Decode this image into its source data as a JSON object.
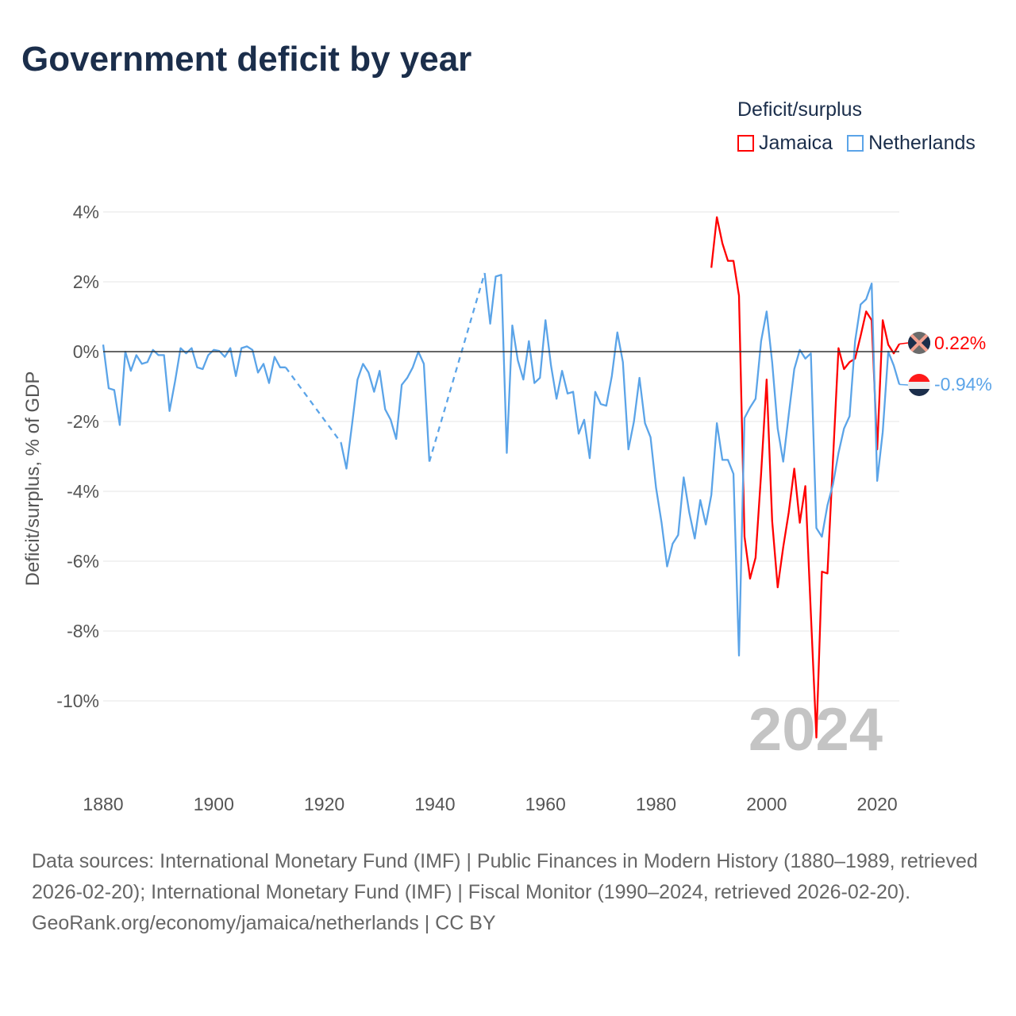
{
  "title": "Government deficit by year",
  "legend": {
    "title": "Deficit/surplus",
    "items": [
      {
        "name": "Jamaica",
        "color": "#ff0000"
      },
      {
        "name": "Netherlands",
        "color": "#5ba4e8"
      }
    ]
  },
  "year_watermark": "2024",
  "end_labels": {
    "jamaica": "0.22%",
    "netherlands": "-0.94%"
  },
  "footer": {
    "sources": "Data sources: International Monetary Fund (IMF) | Public Finances in Modern History (1880–1989, retrieved 2026-02-20); International Monetary Fund (IMF) | Fiscal Monitor (1990–2024, retrieved 2026-02-20).",
    "credit": "GeoRank.org/economy/jamaica/netherlands | CC BY"
  },
  "chart_data": {
    "type": "line",
    "title": "Government deficit by year",
    "xlabel": "",
    "ylabel": "Deficit/surplus, % of GDP",
    "xlim": [
      1880,
      2024
    ],
    "ylim": [
      -12,
      4.5
    ],
    "xticks": [
      1880,
      1900,
      1920,
      1940,
      1960,
      1980,
      2000,
      2020
    ],
    "yticks": [
      4,
      2,
      0,
      -2,
      -4,
      -6,
      -8,
      -10
    ],
    "ytick_labels": [
      "4%",
      "2%",
      "0%",
      "-2%",
      "-4%",
      "-6%",
      "-8%",
      "-10%"
    ],
    "grid": true,
    "legend_position": "top-right",
    "series": [
      {
        "name": "Netherlands",
        "color": "#5ba4e8",
        "start_year": 1880,
        "values": [
          0.2,
          -1.05,
          -1.1,
          -2.1,
          0,
          -0.55,
          -0.1,
          -0.35,
          -0.3,
          0.05,
          -0.1,
          -0.1,
          -1.7,
          -0.85,
          0.1,
          -0.05,
          0.1,
          -0.45,
          -0.5,
          -0.1,
          0.05,
          0.02,
          -0.15,
          0.1,
          -0.7,
          0.1,
          0.15,
          0.05,
          -0.6,
          -0.35,
          -0.9,
          -0.15,
          -0.45,
          -0.45,
          null,
          null,
          null,
          null,
          null,
          null,
          null,
          null,
          null,
          -2.6,
          -3.35,
          -2.1,
          -0.8,
          -0.35,
          -0.6,
          -1.15,
          -0.55,
          -1.65,
          -1.95,
          -2.5,
          -0.95,
          -0.75,
          -0.45,
          0,
          -0.35,
          -3.15,
          null,
          null,
          null,
          null,
          null,
          null,
          null,
          null,
          null,
          2.25,
          0.8,
          2.15,
          2.2,
          -2.9,
          0.75,
          -0.25,
          -0.8,
          0.3,
          -0.9,
          -0.75,
          0.9,
          -0.4,
          -1.35,
          -0.55,
          -1.2,
          -1.15,
          -2.35,
          -1.95,
          -3.05,
          -1.15,
          -1.5,
          -1.55,
          -0.7,
          0.55,
          -0.3,
          -2.8,
          -2.0,
          -0.75,
          -2.05,
          -2.45,
          -3.9,
          -4.9,
          -6.15,
          -5.5,
          -5.25,
          -3.6,
          -4.6,
          -5.35,
          -4.25,
          -4.95,
          -4.1,
          -2.05,
          -3.1,
          -3.1,
          -3.5,
          -8.7,
          -1.9,
          -1.6,
          -1.35,
          0.3,
          1.15,
          -0.3,
          -2.2,
          -3.15,
          -1.8,
          -0.5,
          0.05,
          -0.2,
          -0.05,
          -5.05,
          -5.3,
          -4.4,
          -3.8,
          -2.9,
          -2.2,
          -1.85,
          0.3,
          1.35,
          1.5,
          1.95,
          -3.7,
          -2.3,
          0.0,
          -0.4,
          -0.94
        ]
      },
      {
        "name": "Jamaica",
        "color": "#ff0000",
        "start_year": 1990,
        "values": [
          2.4,
          3.85,
          3.1,
          2.6,
          2.6,
          1.6,
          -5.3,
          -6.5,
          -5.9,
          -3.5,
          -0.8,
          -4.85,
          -6.75,
          -5.6,
          -4.6,
          -3.35,
          -4.9,
          -3.85,
          -7.5,
          -11.05,
          -6.3,
          -6.35,
          -3.1,
          0.1,
          -0.5,
          -0.3,
          -0.2,
          0.45,
          1.15,
          0.9,
          -2.8,
          0.9,
          0.2,
          -0.05,
          0.22
        ]
      }
    ]
  }
}
